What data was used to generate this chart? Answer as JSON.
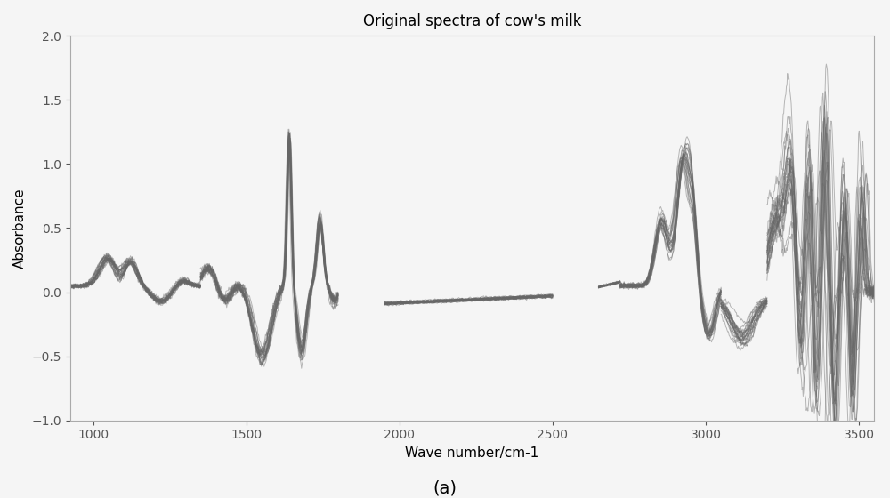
{
  "title": "Original spectra of cow's milk",
  "xlabel": "Wave number/cm-1",
  "ylabel": "Absorbance",
  "xlim": [
    925,
    3550
  ],
  "ylim": [
    -1.0,
    2.0
  ],
  "xticks": [
    1000,
    1500,
    2000,
    2500,
    3000,
    3500
  ],
  "yticks": [
    -1.0,
    -0.5,
    0.0,
    0.5,
    1.0,
    1.5,
    2.0
  ],
  "subtitle": "(a)",
  "line_color": "#666666",
  "line_alpha": 0.45,
  "line_width": 0.7,
  "n_spectra": 25,
  "background_color": "#f5f5f5"
}
